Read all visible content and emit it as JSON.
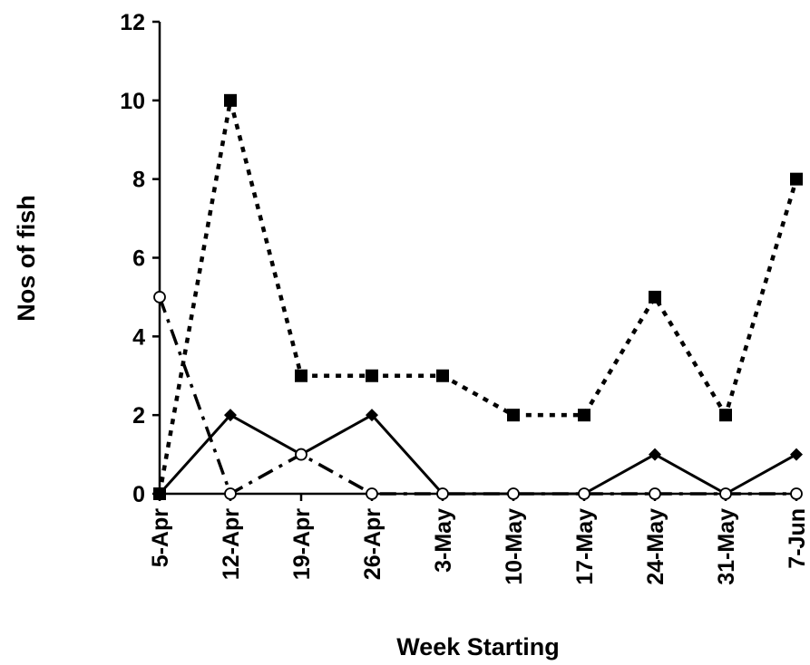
{
  "chart_data": {
    "type": "line",
    "title": "",
    "xlabel": "Week Starting",
    "ylabel": "Nos of fish",
    "categories": [
      "5-Apr",
      "12-Apr",
      "19-Apr",
      "26-Apr",
      "3-May",
      "10-May",
      "17-May",
      "24-May",
      "31-May",
      "7-Jun"
    ],
    "ylim": [
      0,
      12
    ],
    "yticks": [
      "0",
      "2",
      "4",
      "6",
      "8",
      "10",
      "12"
    ],
    "grid": false,
    "legend": "none",
    "series": [
      {
        "values": [
          0,
          10,
          3,
          3,
          3,
          2,
          2,
          5,
          2,
          8
        ],
        "marker": "square",
        "line": "dotted",
        "color": "#000000"
      },
      {
        "values": [
          0,
          2,
          1,
          2,
          0,
          0,
          0,
          1,
          0,
          1
        ],
        "marker": "diamond",
        "line": "solid",
        "color": "#000000"
      },
      {
        "values": [
          5,
          0,
          1,
          0,
          0,
          0,
          0,
          0,
          0,
          0
        ],
        "marker": "open-circle",
        "line": "dash-dot",
        "color": "#000000"
      }
    ]
  }
}
